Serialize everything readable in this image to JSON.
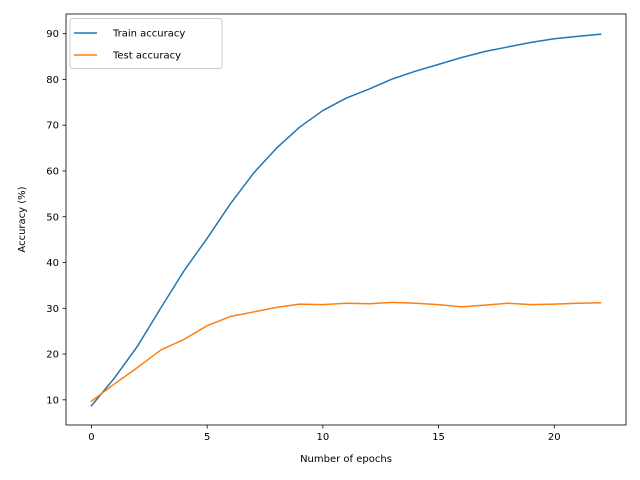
{
  "chart_data": {
    "type": "line",
    "title": "",
    "xlabel": "Number of epochs",
    "ylabel": "Accuracy (%)",
    "xlim": [
      -1.1,
      23.1
    ],
    "ylim": [
      4.5,
      94.3
    ],
    "xticks": [
      0,
      5,
      10,
      15,
      20
    ],
    "yticks": [
      10,
      20,
      30,
      40,
      50,
      60,
      70,
      80,
      90
    ],
    "grid": false,
    "legend_position": "top-left",
    "x": [
      0,
      1,
      2,
      3,
      4,
      5,
      6,
      7,
      8,
      9,
      10,
      11,
      12,
      13,
      14,
      15,
      16,
      17,
      18,
      19,
      20,
      21,
      22
    ],
    "series": [
      {
        "name": "Train accuracy",
        "color": "#1f77b4",
        "values": [
          8.7,
          14.8,
          21.8,
          30.1,
          38.2,
          45.3,
          52.8,
          59.5,
          65.0,
          69.6,
          73.2,
          75.9,
          77.9,
          80.1,
          81.8,
          83.3,
          84.8,
          86.1,
          87.1,
          88.1,
          88.9,
          89.4,
          89.9
        ]
      },
      {
        "name": "Test accuracy",
        "color": "#ff7f0e",
        "values": [
          9.7,
          13.5,
          17.1,
          20.9,
          23.2,
          26.2,
          28.2,
          29.2,
          30.2,
          30.9,
          30.8,
          31.1,
          31.0,
          31.3,
          31.1,
          30.8,
          30.3,
          30.7,
          31.1,
          30.8,
          30.9,
          31.1,
          31.2
        ]
      }
    ]
  }
}
